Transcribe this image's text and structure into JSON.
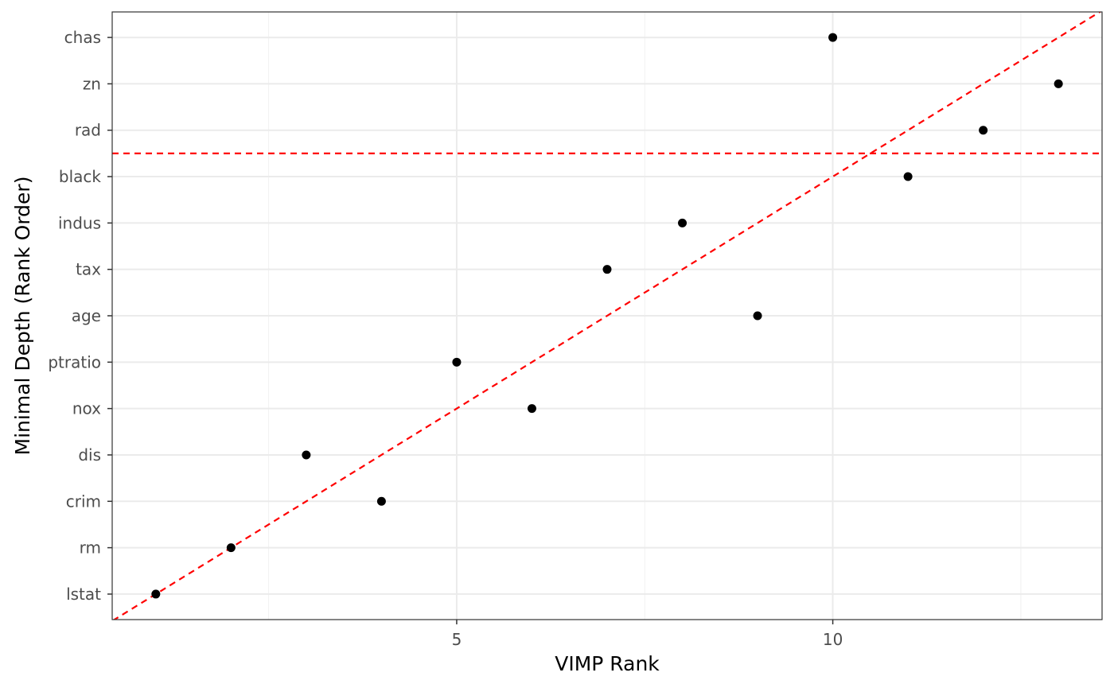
{
  "chart_data": {
    "type": "scatter",
    "xlabel": "VIMP Rank",
    "ylabel": "Minimal Depth (Rank Order)",
    "x_ticks": [
      5,
      10
    ],
    "x_minor_ticks": [
      2.5,
      7.5,
      12.5
    ],
    "xlim": [
      0.42,
      13.58
    ],
    "ylim": [
      0.45,
      13.55
    ],
    "y_categories": [
      "lstat",
      "rm",
      "crim",
      "dis",
      "nox",
      "ptratio",
      "age",
      "tax",
      "indus",
      "black",
      "rad",
      "zn",
      "chas"
    ],
    "points": [
      {
        "label": "lstat",
        "x": 1,
        "y": 1
      },
      {
        "label": "rm",
        "x": 2,
        "y": 2
      },
      {
        "label": "crim",
        "x": 4,
        "y": 3
      },
      {
        "label": "dis",
        "x": 3,
        "y": 4
      },
      {
        "label": "nox",
        "x": 6,
        "y": 5
      },
      {
        "label": "ptratio",
        "x": 5,
        "y": 6
      },
      {
        "label": "age",
        "x": 9,
        "y": 7
      },
      {
        "label": "tax",
        "x": 7,
        "y": 8
      },
      {
        "label": "indus",
        "x": 8,
        "y": 9
      },
      {
        "label": "black",
        "x": 11,
        "y": 10
      },
      {
        "label": "rad",
        "x": 12,
        "y": 11
      },
      {
        "label": "zn",
        "x": 13,
        "y": 12
      },
      {
        "label": "chas",
        "x": 10,
        "y": 13
      }
    ],
    "reference_lines": [
      {
        "kind": "diagonal",
        "slope": 1,
        "intercept": 0,
        "color": "#ff0000",
        "style": "dashed"
      },
      {
        "kind": "horizontal",
        "y": 10.5,
        "color": "#ff0000",
        "style": "dashed"
      }
    ],
    "grid": true,
    "point_color": "#000000"
  }
}
